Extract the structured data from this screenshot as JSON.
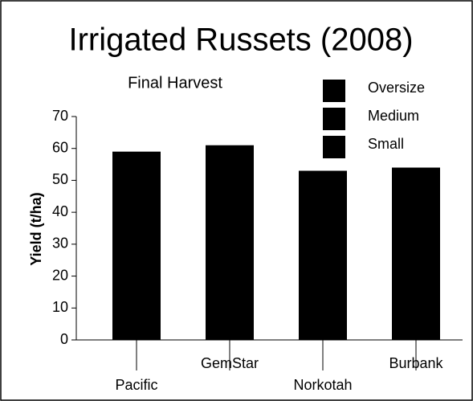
{
  "chart_data": {
    "type": "bar",
    "title": "Irrigated Russets (2008)",
    "subtitle": "Final Harvest",
    "y_label": "Yield (t/ha)",
    "categories": [
      "Pacific",
      "GemStar",
      "Norkotah",
      "Burbank"
    ],
    "values": [
      59,
      61,
      53,
      54
    ],
    "color": "#000000",
    "legend": [
      {
        "name": "Oversize",
        "color": "#000000"
      },
      {
        "name": "Medium",
        "color": "#000000"
      },
      {
        "name": "Small",
        "color": "#000000"
      }
    ],
    "ylim": [
      0,
      70
    ],
    "yticks": [
      0,
      10,
      20,
      30,
      40,
      50,
      60,
      70
    ],
    "grid": false
  }
}
